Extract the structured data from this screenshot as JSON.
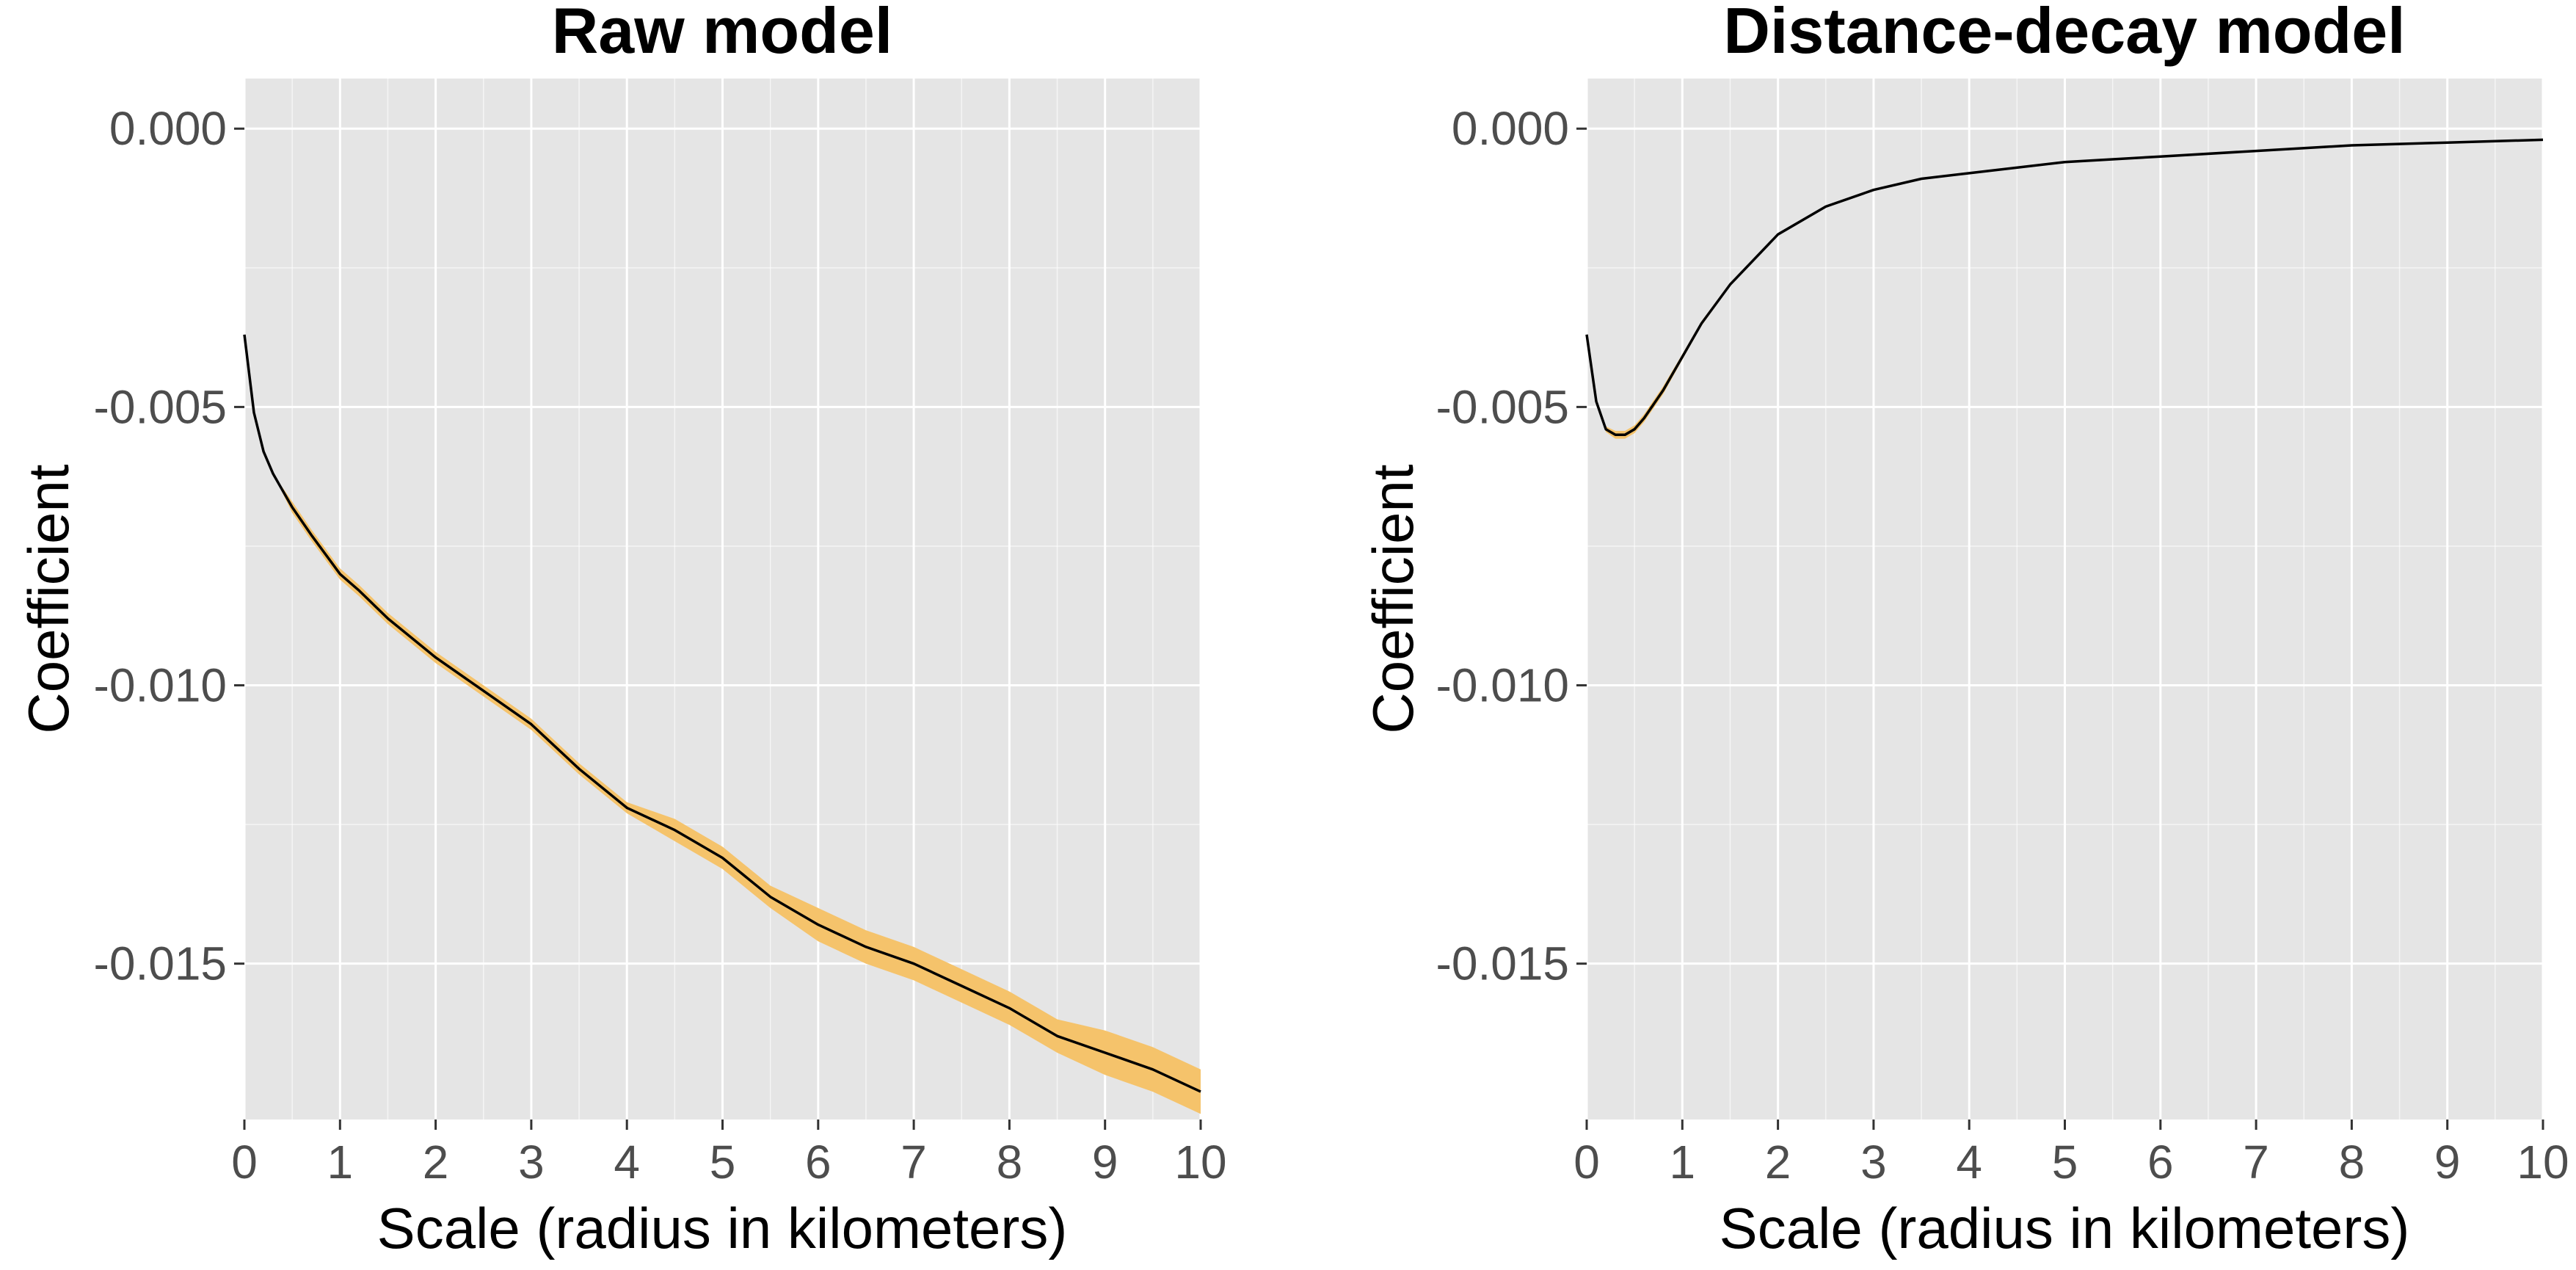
{
  "colors": {
    "panel_background": "#e5e5e5",
    "grid": "#ffffff",
    "band": "#f5c36b",
    "line": "#000000",
    "tick_text": "#4d4d4d"
  },
  "chart_data": [
    {
      "type": "line",
      "title": "Raw model",
      "xlabel": "Scale (radius in kilometers)",
      "ylabel": "Coefficient",
      "xlim": [
        0,
        10
      ],
      "ylim": [
        -0.0178,
        0.0009
      ],
      "xticks": [
        0,
        1,
        2,
        3,
        4,
        5,
        6,
        7,
        8,
        9,
        10
      ],
      "xtick_labels": [
        "0",
        "1",
        "2",
        "3",
        "4",
        "5",
        "6",
        "7",
        "8",
        "9",
        "10"
      ],
      "yticks": [
        0,
        -0.005,
        -0.01,
        -0.015
      ],
      "ytick_labels": [
        "0.000",
        "-0.005",
        "-0.010",
        "-0.015"
      ],
      "grid": true,
      "series": [
        {
          "x": [
            0,
            0.1,
            0.2,
            0.3,
            0.5,
            0.7,
            1.0,
            1.2,
            1.5,
            2.0,
            2.5,
            3.0,
            3.5,
            4.0,
            4.5,
            5.0,
            5.5,
            6.0,
            6.5,
            7.0,
            7.5,
            8.0,
            8.5,
            9.0,
            9.5,
            10.0
          ],
          "y": [
            -0.0037,
            -0.0051,
            -0.0058,
            -0.0062,
            -0.0068,
            -0.0073,
            -0.008,
            -0.0083,
            -0.0088,
            -0.0095,
            -0.0101,
            -0.0107,
            -0.0115,
            -0.0122,
            -0.0126,
            -0.0131,
            -0.0138,
            -0.0143,
            -0.0147,
            -0.015,
            -0.0154,
            -0.0158,
            -0.0163,
            -0.0166,
            -0.0169,
            -0.0173
          ],
          "lower": [
            -0.0037,
            -0.0051,
            -0.0058,
            -0.0062,
            -0.0069,
            -0.0074,
            -0.0081,
            -0.0084,
            -0.0089,
            -0.0096,
            -0.0102,
            -0.0108,
            -0.0116,
            -0.0123,
            -0.0128,
            -0.0133,
            -0.014,
            -0.0146,
            -0.015,
            -0.0153,
            -0.0157,
            -0.0161,
            -0.0166,
            -0.017,
            -0.0173,
            -0.0177
          ],
          "upper": [
            -0.0037,
            -0.0051,
            -0.0058,
            -0.0062,
            -0.0067,
            -0.0072,
            -0.0079,
            -0.0082,
            -0.0087,
            -0.0094,
            -0.01,
            -0.0106,
            -0.0114,
            -0.0121,
            -0.0124,
            -0.0129,
            -0.0136,
            -0.014,
            -0.0144,
            -0.0147,
            -0.0151,
            -0.0155,
            -0.016,
            -0.0162,
            -0.0165,
            -0.0169
          ]
        }
      ]
    },
    {
      "type": "line",
      "title": "Distance-decay model",
      "xlabel": "Scale (radius in kilometers)",
      "ylabel": "Coefficient",
      "xlim": [
        0,
        10
      ],
      "ylim": [
        -0.0178,
        0.0009
      ],
      "xticks": [
        0,
        1,
        2,
        3,
        4,
        5,
        6,
        7,
        8,
        9,
        10
      ],
      "xtick_labels": [
        "0",
        "1",
        "2",
        "3",
        "4",
        "5",
        "6",
        "7",
        "8",
        "9",
        "10"
      ],
      "yticks": [
        0,
        -0.005,
        -0.01,
        -0.015
      ],
      "ytick_labels": [
        "0.000",
        "-0.005",
        "-0.010",
        "-0.015"
      ],
      "grid": true,
      "series": [
        {
          "x": [
            0,
            0.1,
            0.2,
            0.3,
            0.4,
            0.5,
            0.6,
            0.8,
            1.0,
            1.2,
            1.5,
            2.0,
            2.5,
            3.0,
            3.5,
            4.0,
            5.0,
            6.0,
            7.0,
            8.0,
            9.0,
            10.0
          ],
          "y": [
            -0.0037,
            -0.0049,
            -0.0054,
            -0.0055,
            -0.0055,
            -0.0054,
            -0.0052,
            -0.0047,
            -0.0041,
            -0.0035,
            -0.0028,
            -0.0019,
            -0.0014,
            -0.0011,
            -0.0009,
            -0.0008,
            -0.0006,
            -0.0005,
            -0.0004,
            -0.0003,
            -0.00025,
            -0.0002
          ],
          "lower": [
            -0.0037,
            -0.0049,
            -0.00545,
            -0.00557,
            -0.00557,
            -0.00547,
            -0.00527,
            -0.00477,
            -0.00415,
            -0.00354,
            -0.00283,
            -0.00192,
            -0.00141,
            -0.00111,
            -0.00091,
            -0.00081,
            -0.00061,
            -0.00051,
            -0.00041,
            -0.00031,
            -0.00026,
            -0.00021
          ],
          "upper": [
            -0.0037,
            -0.0049,
            -0.00535,
            -0.00543,
            -0.00543,
            -0.00533,
            -0.00513,
            -0.00463,
            -0.00405,
            -0.00346,
            -0.00277,
            -0.00188,
            -0.00139,
            -0.00109,
            -0.00089,
            -0.00079,
            -0.00059,
            -0.00049,
            -0.00039,
            -0.00029,
            -0.00024,
            -0.00019
          ]
        }
      ]
    }
  ]
}
